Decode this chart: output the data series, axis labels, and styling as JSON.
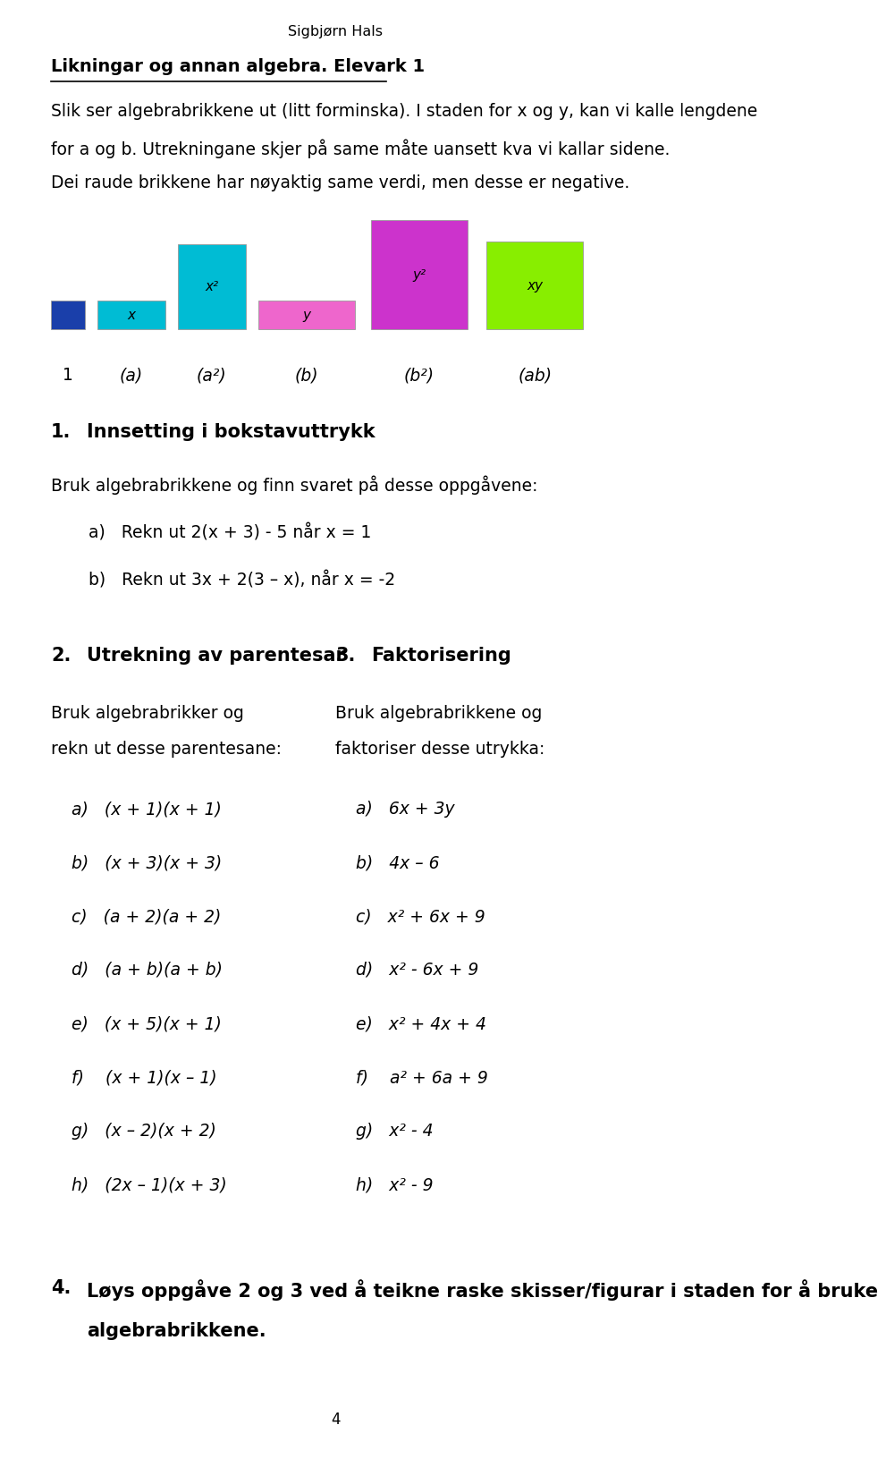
{
  "bg_color": "#ffffff",
  "page_title": "Sigbjørn Hals",
  "heading": "Likningar og annan algebra. Elevark 1",
  "intro_lines": [
    "Slik ser algebrabrikkene ut (litt forminska). I staden for x og y, kan vi kalle lengdene",
    "for a og b. Utrekningane skjer på same måte uansett kva vi kallar sidene.",
    "Dei raude brikkene har nøyaktig same verdi, men desse er negative."
  ],
  "block_1_color": "#1a3faa",
  "block_x_color": "#00bcd4",
  "block_x2_color": "#00bcd4",
  "block_y_color": "#ee66cc",
  "block_y2_color": "#cc33cc",
  "block_xy_color": "#88ee00",
  "s1_title": "Innsetting i bokstavuttrykk",
  "s1_intro": "Bruk algebrabrikkene og finn svaret på desse oppgåvene:",
  "s1_a": "a)   Rekn ut 2(x + 3) - 5 når x = 1",
  "s1_b": "b)   Rekn ut 3x + 2(3 – x), når x = -2",
  "s2_title": "Utrekning av parentesar",
  "s3_title": "Faktorisering",
  "s2_intro": [
    "Bruk algebrabrikker og",
    "rekn ut desse parentesane:"
  ],
  "s3_intro": [
    "Bruk algebrabrikkene og",
    "faktoriser desse utrykka:"
  ],
  "col1": [
    "a)   (x + 1)(x + 1)",
    "b)   (x + 3)(x + 3)",
    "c)   (a + 2)(a + 2)",
    "d)   (a + b)(a + b)",
    "e)   (x + 5)(x + 1)",
    "f)    (x + 1)(x – 1)",
    "g)   (x – 2)(x + 2)",
    "h)   (2x – 1)(x + 3)"
  ],
  "col2": [
    "a)   6x + 3y",
    "b)   4x – 6",
    "c)   x² + 6x + 9",
    "d)   x² - 6x + 9",
    "e)   x² + 4x + 4",
    "f)    a² + 6a + 9",
    "g)   x² - 4",
    "h)   x² - 9"
  ],
  "s4_line1": "4.   Løys oppgåve 2 og 3 ved å teikne raske skisser/figurar i staden for å bruke",
  "s4_line2": "      algebrabrikkene.",
  "page_number": "4"
}
